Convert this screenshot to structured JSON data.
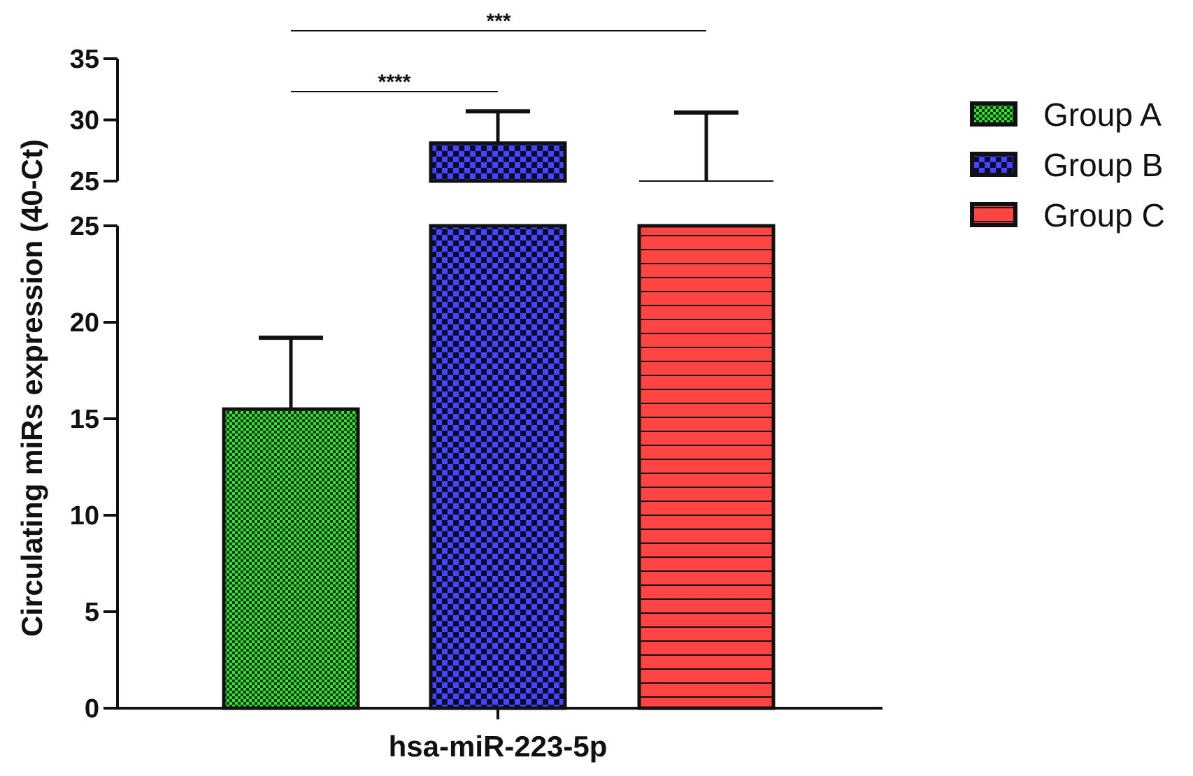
{
  "chart_data": {
    "type": "bar",
    "categories": [
      "hsa-miR-223-5p"
    ],
    "xlabel": "hsa-miR-223-5p",
    "ylabel": "Circulating miRs expression (40-Ct)",
    "axis_break": true,
    "lower_segment": {
      "range": [
        0,
        25
      ],
      "ticks": [
        "0",
        "5",
        "10",
        "15",
        "20",
        "25"
      ]
    },
    "upper_segment": {
      "range": [
        25,
        35
      ],
      "ticks": [
        "25",
        "30",
        "35"
      ]
    },
    "series": [
      {
        "name": "Group A",
        "value": 15.5,
        "error_upper": 19.2,
        "color": "#3ddc3d",
        "pattern": "fine-checker"
      },
      {
        "name": "Group B",
        "value": 28.1,
        "error_upper": 30.7,
        "color": "#4646ff",
        "pattern": "checker"
      },
      {
        "name": "Group C",
        "value": 25.0,
        "error_upper": 30.6,
        "color": "#ff4444",
        "pattern": "horizontal-stripes"
      }
    ],
    "significance": [
      {
        "label": "****",
        "from": "Group A",
        "to": "Group B"
      },
      {
        "label": "***",
        "from": "Group A",
        "to": "Group C"
      }
    ],
    "legend": {
      "position": "top-right",
      "entries": [
        "Group A",
        "Group B",
        "Group C"
      ]
    },
    "grid": false
  }
}
